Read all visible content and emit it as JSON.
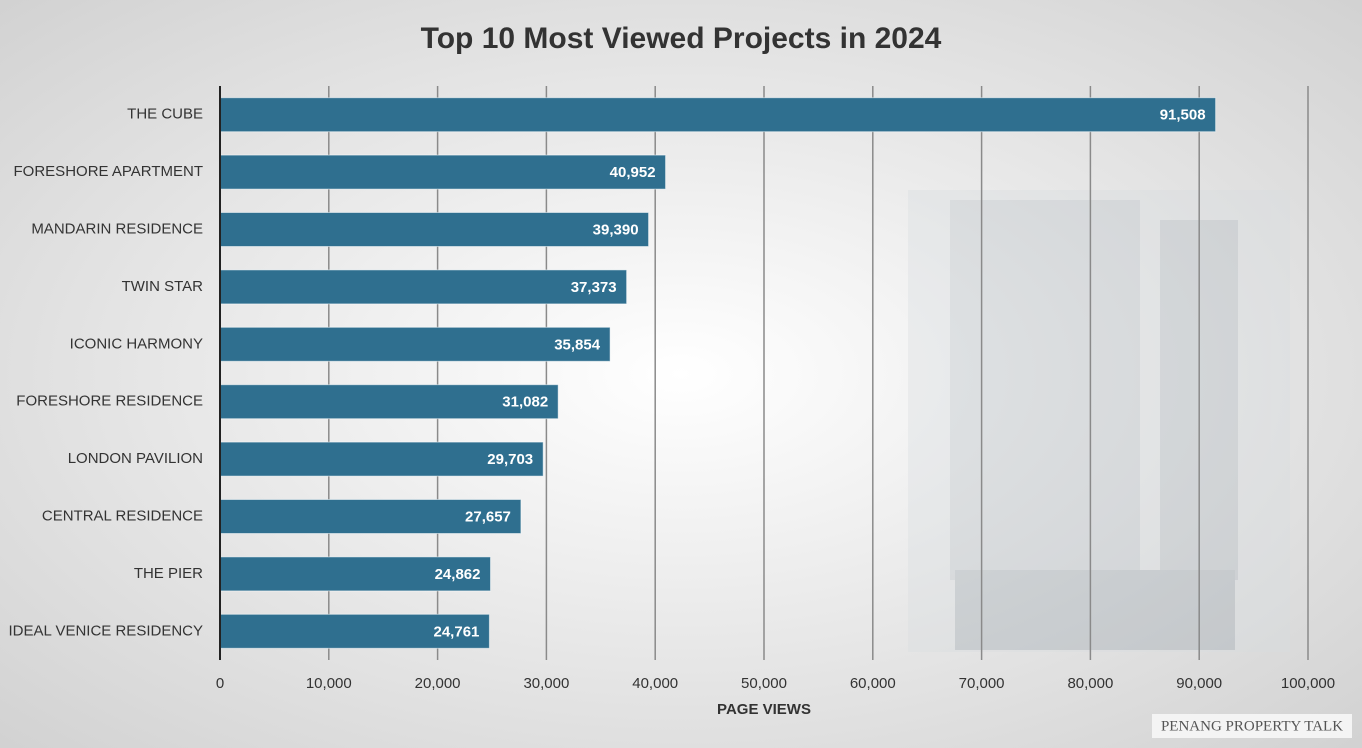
{
  "chart_data": {
    "type": "barh",
    "title": "Top 10 Most Viewed Projects in 2024",
    "categories": [
      "THE CUBE",
      "FORESHORE APARTMENT",
      "MANDARIN RESIDENCE",
      "TWIN STAR",
      "ICONIC HARMONY",
      "FORESHORE RESIDENCE",
      "LONDON PAVILION",
      "CENTRAL RESIDENCE",
      "THE PIER",
      "IDEAL VENICE RESIDENCY"
    ],
    "values": [
      91508,
      40952,
      39390,
      37373,
      35854,
      31082,
      29703,
      27657,
      24862,
      24761
    ],
    "value_labels": [
      "91,508",
      "40,952",
      "39,390",
      "37,373",
      "35,854",
      "31,082",
      "29,703",
      "27,657",
      "24,862",
      "24,761"
    ],
    "color": "#2f6f8f",
    "xlabel": "PAGE VIEWS",
    "xlim": [
      0,
      100000
    ],
    "xticks": [
      0,
      {
        "value": 10000,
        "label": "10,000"
      },
      {
        "value": 20000,
        "label": "20,000"
      },
      {
        "value": 30000,
        "label": "30,000"
      },
      {
        "value": 40000,
        "label": "40,000"
      },
      {
        "value": 50000,
        "label": "50,000"
      },
      {
        "value": 60000,
        "label": "60,000"
      },
      {
        "value": 70000,
        "label": "70,000"
      },
      {
        "value": 80000,
        "label": "80,000"
      },
      {
        "value": 90000,
        "label": "90,000"
      },
      {
        "value": 100000,
        "label": "100,000"
      }
    ],
    "grid": true,
    "watermark": "PENANG PROPERTY TALK"
  }
}
